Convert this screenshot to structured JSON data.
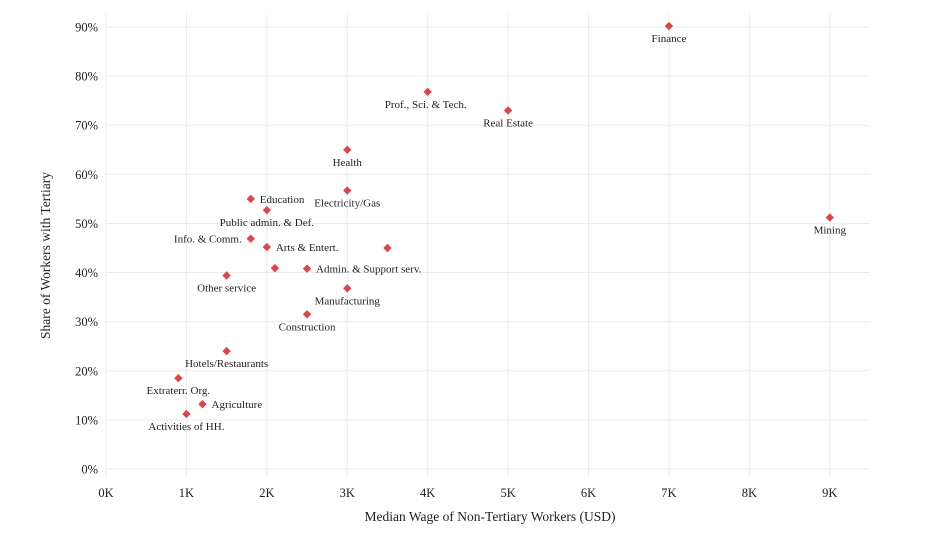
{
  "chart_data": {
    "type": "scatter",
    "title": "",
    "xlabel": "Median Wage of Non-Tertiary Workers (USD)",
    "ylabel": "Share of Workers with Tertiary",
    "xlim": [
      0,
      9500
    ],
    "ylim": [
      0,
      90
    ],
    "x_ticks": [
      0,
      1000,
      2000,
      3000,
      4000,
      5000,
      6000,
      7000,
      8000,
      9000
    ],
    "x_tick_labels": [
      "0K",
      "1K",
      "2K",
      "3K",
      "4K",
      "5K",
      "6K",
      "7K",
      "8K",
      "9K"
    ],
    "y_ticks": [
      0,
      10,
      20,
      30,
      40,
      50,
      60,
      70,
      80,
      90
    ],
    "y_tick_labels": [
      "0%",
      "10%",
      "20%",
      "30%",
      "40%",
      "50%",
      "60%",
      "70%",
      "80%",
      "90%"
    ],
    "grid": true,
    "marker_color": "#d9464b",
    "points": [
      {
        "label": "Finance",
        "x": 7000,
        "y": 90.2,
        "pos": "below"
      },
      {
        "label": "Prof., Sci. & Tech.",
        "x": 4000,
        "y": 76.8,
        "pos": "below-left"
      },
      {
        "label": "Real Estate",
        "x": 5000,
        "y": 73.0,
        "pos": "below"
      },
      {
        "label": "Health",
        "x": 3000,
        "y": 65.0,
        "pos": "below"
      },
      {
        "label": "Electricity/Gas",
        "x": 3000,
        "y": 56.7,
        "pos": "below"
      },
      {
        "label": "Education",
        "x": 1800,
        "y": 55.0,
        "pos": "right"
      },
      {
        "label": "Public admin. & Def.",
        "x": 2000,
        "y": 52.7,
        "pos": "below"
      },
      {
        "label": "Mining",
        "x": 9000,
        "y": 51.2,
        "pos": "below"
      },
      {
        "label": "Info. & Comm.",
        "x": 1800,
        "y": 46.9,
        "pos": "left"
      },
      {
        "label": "Arts & Entert.",
        "x": 2000,
        "y": 45.2,
        "pos": "right"
      },
      {
        "label": "",
        "x": 3500,
        "y": 45.0,
        "pos": "none"
      },
      {
        "label": "",
        "x": 2100,
        "y": 40.9,
        "pos": "none"
      },
      {
        "label": "Admin. & Support serv.",
        "x": 2500,
        "y": 40.8,
        "pos": "right"
      },
      {
        "label": "Other service",
        "x": 1500,
        "y": 39.4,
        "pos": "below"
      },
      {
        "label": "Manufacturing",
        "x": 3000,
        "y": 36.8,
        "pos": "below"
      },
      {
        "label": "Construction",
        "x": 2500,
        "y": 31.5,
        "pos": "below"
      },
      {
        "label": "Hotels/Restaurants",
        "x": 1500,
        "y": 24.0,
        "pos": "below"
      },
      {
        "label": "Extraterr. Org.",
        "x": 900,
        "y": 18.5,
        "pos": "below"
      },
      {
        "label": "Agriculture",
        "x": 1200,
        "y": 13.2,
        "pos": "right"
      },
      {
        "label": "Activities of HH.",
        "x": 1000,
        "y": 11.2,
        "pos": "below"
      }
    ]
  }
}
